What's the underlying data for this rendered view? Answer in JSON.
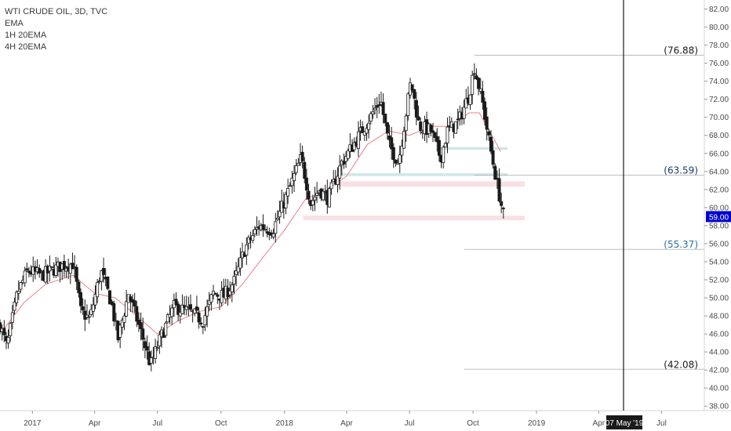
{
  "legend": {
    "title": "WTI CRUDE OIL, 3D, TVC",
    "line2": "EMA",
    "line3": "1H 20EMA",
    "line4": "4H 20EMA"
  },
  "colors": {
    "background": "#ffffff",
    "candle": "#1a1a1a",
    "ema": "#e8808a",
    "zone_red": "#f9dfe3",
    "zone_teal": "#cfe6e6",
    "fib_line": "#bdbdbd",
    "cursor_line": "#1a1a1a",
    "price_badge": "#0000cc",
    "fib_label_blue": "#2a6fa3"
  },
  "chart_data": {
    "type": "candlestick",
    "symbol": "WTI CRUDE OIL",
    "interval": "3D",
    "source": "TVC",
    "ylim": [
      37.5,
      83.0
    ],
    "y_ticks": [
      "38.00",
      "40.00",
      "42.00",
      "44.00",
      "46.00",
      "48.00",
      "50.00",
      "52.00",
      "54.00",
      "56.00",
      "58.00",
      "60.00",
      "62.00",
      "64.00",
      "66.00",
      "68.00",
      "70.00",
      "72.00",
      "74.00",
      "76.00",
      "78.00",
      "80.00",
      "82.00"
    ],
    "x_ticks": [
      "2017",
      "Apr",
      "Jul",
      "Oct",
      "2018",
      "Apr",
      "Jul",
      "Oct",
      "2019",
      "Apr",
      "Jul"
    ],
    "x_tick_dates": [
      "2017-01-01",
      "2017-04-01",
      "2017-07-01",
      "2017-10-01",
      "2018-01-01",
      "2018-04-01",
      "2018-07-01",
      "2018-10-01",
      "2019-01-01",
      "2019-04-01",
      "2019-07-01"
    ],
    "x_range": [
      "2016-11-15",
      "2019-09-01"
    ],
    "ema_label": "EMA",
    "last_price": "59.00",
    "cursor_date": "07 May '19",
    "cursor_date_value": "2019-05-07",
    "fib_levels": [
      {
        "label": "(76.88)",
        "value": 76.88,
        "start": "2018-10-03",
        "label_color": "#1a1a1a"
      },
      {
        "label": "(63.59)",
        "value": 63.59,
        "start": "2018-10-03",
        "label_color": "#1f3a6b"
      },
      {
        "label": "(55.37)",
        "value": 55.37,
        "start": "2018-09-18",
        "label_color": "#2a6fa3"
      },
      {
        "label": "(42.08)",
        "value": 42.08,
        "start": "2018-09-18",
        "label_color": "#1a1a1a"
      }
    ],
    "zones": [
      {
        "color": "red",
        "low": 62.3,
        "high": 62.9,
        "start": "2018-03-20",
        "end": "2018-12-15"
      },
      {
        "color": "red",
        "low": 58.6,
        "high": 59.1,
        "start": "2018-01-28",
        "end": "2018-12-15"
      },
      {
        "color": "teal",
        "low": 63.5,
        "high": 63.8,
        "start": "2018-03-20",
        "end": "2018-11-20"
      },
      {
        "color": "teal",
        "low": 66.4,
        "high": 66.7,
        "start": "2018-08-10",
        "end": "2018-11-20"
      }
    ],
    "anchors": [
      [
        "2016-11-15",
        47.0
      ],
      [
        "2016-11-25",
        44.5
      ],
      [
        "2016-12-10",
        50.5
      ],
      [
        "2016-12-25",
        53.0
      ],
      [
        "2017-01-15",
        52.5
      ],
      [
        "2017-02-10",
        53.5
      ],
      [
        "2017-03-01",
        53.8
      ],
      [
        "2017-03-12",
        48.5
      ],
      [
        "2017-03-25",
        47.6
      ],
      [
        "2017-04-10",
        53.0
      ],
      [
        "2017-04-25",
        49.5
      ],
      [
        "2017-05-05",
        45.5
      ],
      [
        "2017-05-20",
        50.5
      ],
      [
        "2017-06-10",
        45.5
      ],
      [
        "2017-06-21",
        42.5
      ],
      [
        "2017-07-05",
        45.5
      ],
      [
        "2017-07-25",
        49.0
      ],
      [
        "2017-08-15",
        48.5
      ],
      [
        "2017-09-05",
        47.5
      ],
      [
        "2017-09-20",
        50.5
      ],
      [
        "2017-10-05",
        50.2
      ],
      [
        "2017-10-20",
        51.8
      ],
      [
        "2017-11-05",
        55.5
      ],
      [
        "2017-11-25",
        58.0
      ],
      [
        "2017-12-15",
        57.5
      ],
      [
        "2018-01-05",
        61.5
      ],
      [
        "2018-01-25",
        65.5
      ],
      [
        "2018-02-08",
        60.5
      ],
      [
        "2018-02-20",
        62.0
      ],
      [
        "2018-03-05",
        61.0
      ],
      [
        "2018-03-25",
        65.0
      ],
      [
        "2018-04-15",
        67.5
      ],
      [
        "2018-05-05",
        70.0
      ],
      [
        "2018-05-20",
        72.0
      ],
      [
        "2018-06-01",
        67.0
      ],
      [
        "2018-06-15",
        65.0
      ],
      [
        "2018-06-25",
        70.0
      ],
      [
        "2018-07-03",
        74.0
      ],
      [
        "2018-07-15",
        69.0
      ],
      [
        "2018-08-01",
        68.5
      ],
      [
        "2018-08-15",
        65.5
      ],
      [
        "2018-08-25",
        68.5
      ],
      [
        "2018-09-10",
        69.5
      ],
      [
        "2018-09-25",
        72.5
      ],
      [
        "2018-10-03",
        75.5
      ],
      [
        "2018-10-15",
        71.5
      ],
      [
        "2018-10-25",
        67.0
      ],
      [
        "2018-11-05",
        62.5
      ],
      [
        "2018-11-14",
        59.2
      ]
    ],
    "ema_points": [
      [
        "2016-11-20",
        46.5
      ],
      [
        "2016-12-20",
        49.5
      ],
      [
        "2017-01-20",
        51.5
      ],
      [
        "2017-03-01",
        52.5
      ],
      [
        "2017-04-01",
        50.5
      ],
      [
        "2017-05-01",
        50.0
      ],
      [
        "2017-06-01",
        48.0
      ],
      [
        "2017-07-01",
        46.0
      ],
      [
        "2017-08-01",
        47.5
      ],
      [
        "2017-09-01",
        48.5
      ],
      [
        "2017-10-01",
        49.0
      ],
      [
        "2017-11-01",
        51.5
      ],
      [
        "2017-12-01",
        54.5
      ],
      [
        "2018-01-01",
        57.5
      ],
      [
        "2018-02-01",
        61.0
      ],
      [
        "2018-03-01",
        61.8
      ],
      [
        "2018-04-01",
        63.5
      ],
      [
        "2018-05-01",
        67.0
      ],
      [
        "2018-06-01",
        68.5
      ],
      [
        "2018-07-01",
        68.0
      ],
      [
        "2018-08-01",
        69.0
      ],
      [
        "2018-09-01",
        69.0
      ],
      [
        "2018-09-25",
        70.5
      ],
      [
        "2018-10-10",
        70.5
      ],
      [
        "2018-10-25",
        68.5
      ],
      [
        "2018-11-10",
        66.2
      ]
    ]
  }
}
